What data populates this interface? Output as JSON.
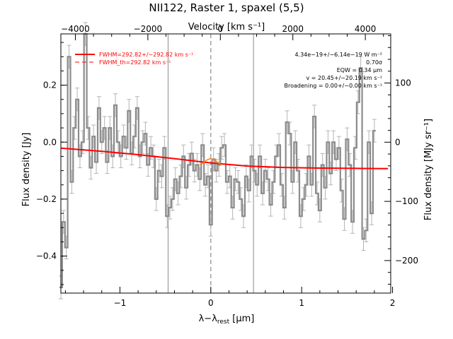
{
  "chart_data": {
    "type": "line",
    "title": "NII122, Raster 1, spaxel (5,5)",
    "xlabel": "λ−λrest [μm]",
    "xlabel_main": "λ−λ",
    "xlabel_sub": "rest",
    "xlabel_unit": " [μm]",
    "top_xlabel": "Velocity [km s⁻¹]",
    "ylabel": "Flux density [Jy]",
    "right_ylabel": "Flux density [MJy sr⁻¹]",
    "xlim": [
      -1.65,
      1.98
    ],
    "ylim": [
      -0.53,
      0.38
    ],
    "top_xlim": [
      -4400,
      4700
    ],
    "right_ylim": [
      -255,
      183
    ],
    "x_ticks": [
      -1,
      0,
      1,
      2
    ],
    "x_tick_labels": [
      "−1",
      "0",
      "1",
      "2"
    ],
    "y_ticks": [
      0.2,
      0.0,
      -0.2,
      -0.4
    ],
    "y_tick_labels": [
      "0.2",
      "0.0",
      "−0.2",
      "−0.4"
    ],
    "top_ticks": [
      -4000,
      -2000,
      0,
      2000,
      4000
    ],
    "top_tick_labels": [
      "−4000",
      "−2000",
      "0",
      "2000",
      "4000"
    ],
    "right_ticks": [
      100,
      0,
      -100,
      -200
    ],
    "right_tick_labels": [
      "100",
      "0",
      "−100",
      "−200"
    ],
    "vlines_solid": [
      -0.47,
      0.47
    ],
    "vline_dashed": 0.0,
    "legend": {
      "placement": "top-left",
      "entries": [
        "FWHM=292.82+/−292.82 km s⁻¹",
        "FWHM_th=292.82 km s⁻¹"
      ]
    },
    "annotations": [
      "4.34e−19+/−6.14e−19 W m⁻²",
      "0.70σ",
      "EQW = 0.34 μm",
      "v = 20.45+/−20.19 km s⁻¹",
      "Broadening = 0.00+/−0.00 km s⁻¹"
    ],
    "colors": {
      "spectrum": "#8c8c8c",
      "errorbars": "#b4b4b4",
      "fit": "#ff0000",
      "line_fit": "#ff8000",
      "vlines": "#8c8c8c"
    },
    "series": [
      {
        "name": "spectrum",
        "x": [
          -1.65,
          -1.62,
          -1.59,
          -1.56,
          -1.53,
          -1.5,
          -1.47,
          -1.44,
          -1.41,
          -1.38,
          -1.35,
          -1.32,
          -1.29,
          -1.26,
          -1.23,
          -1.2,
          -1.17,
          -1.14,
          -1.11,
          -1.08,
          -1.05,
          -1.02,
          -0.99,
          -0.96,
          -0.93,
          -0.9,
          -0.87,
          -0.84,
          -0.81,
          -0.78,
          -0.75,
          -0.72,
          -0.69,
          -0.66,
          -0.63,
          -0.6,
          -0.57,
          -0.54,
          -0.51,
          -0.48,
          -0.45,
          -0.42,
          -0.39,
          -0.36,
          -0.33,
          -0.3,
          -0.27,
          -0.24,
          -0.21,
          -0.18,
          -0.15,
          -0.12,
          -0.09,
          -0.06,
          -0.03,
          0.0,
          0.03,
          0.06,
          0.09,
          0.12,
          0.15,
          0.18,
          0.21,
          0.24,
          0.27,
          0.3,
          0.33,
          0.36,
          0.39,
          0.42,
          0.45,
          0.48,
          0.51,
          0.54,
          0.57,
          0.6,
          0.63,
          0.66,
          0.69,
          0.72,
          0.75,
          0.78,
          0.81,
          0.84,
          0.87,
          0.9,
          0.93,
          0.96,
          0.99,
          1.02,
          1.05,
          1.08,
          1.11,
          1.14,
          1.17,
          1.2,
          1.23,
          1.26,
          1.29,
          1.32,
          1.35,
          1.38,
          1.41,
          1.44,
          1.47,
          1.5,
          1.53,
          1.56,
          1.59,
          1.62,
          1.65,
          1.68,
          1.71,
          1.74,
          1.77,
          1.8
        ],
        "y": [
          -0.51,
          -0.28,
          -0.37,
          0.3,
          -0.14,
          0.05,
          0.15,
          -0.05,
          0.0,
          0.38,
          0.05,
          -0.09,
          0.02,
          -0.07,
          0.12,
          0.0,
          0.05,
          -0.07,
          0.05,
          -0.05,
          0.13,
          0.0,
          -0.05,
          0.02,
          -0.02,
          0.11,
          -0.04,
          0.02,
          0.12,
          -0.05,
          0.0,
          0.03,
          -0.08,
          -0.02,
          -0.05,
          -0.2,
          -0.1,
          -0.12,
          -0.02,
          -0.26,
          -0.23,
          -0.2,
          -0.13,
          -0.18,
          -0.12,
          -0.05,
          -0.16,
          -0.08,
          -0.04,
          -0.1,
          -0.08,
          -0.13,
          -0.01,
          -0.15,
          -0.12,
          -0.29,
          -0.06,
          -0.1,
          -0.08,
          -0.02,
          -0.01,
          -0.14,
          -0.12,
          -0.23,
          -0.13,
          -0.14,
          -0.2,
          -0.26,
          -0.12,
          -0.17,
          -0.05,
          -0.1,
          -0.15,
          -0.05,
          -0.18,
          -0.1,
          -0.13,
          -0.22,
          -0.14,
          -0.05,
          -0.01,
          -0.15,
          -0.23,
          0.07,
          0.03,
          -0.14,
          0.0,
          -0.1,
          -0.26,
          -0.2,
          -0.15,
          -0.05,
          -0.15,
          0.09,
          -0.18,
          -0.24,
          -0.08,
          -0.16,
          0.0,
          -0.11,
          0.0,
          -0.06,
          -0.02,
          -0.17,
          -0.27,
          0.01,
          -0.08,
          -0.28,
          -0.02,
          0.14,
          0.26,
          -0.34,
          -0.31,
          0.0,
          -0.25,
          0.04
        ],
        "err": 0.04
      },
      {
        "name": "continuum fit",
        "x": [
          -1.65,
          -1.2,
          -0.8,
          -0.4,
          0.0,
          0.4,
          0.8,
          1.2,
          1.6,
          1.95
        ],
        "y": [
          -0.021,
          -0.032,
          -0.044,
          -0.058,
          -0.073,
          -0.084,
          -0.089,
          -0.091,
          -0.092,
          -0.093
        ]
      },
      {
        "name": "line fit",
        "x": [
          -0.12,
          -0.08,
          -0.04,
          0.0,
          0.04,
          0.08,
          0.12
        ],
        "y": [
          -0.08,
          -0.072,
          -0.062,
          -0.058,
          -0.062,
          -0.072,
          -0.08
        ]
      }
    ]
  }
}
